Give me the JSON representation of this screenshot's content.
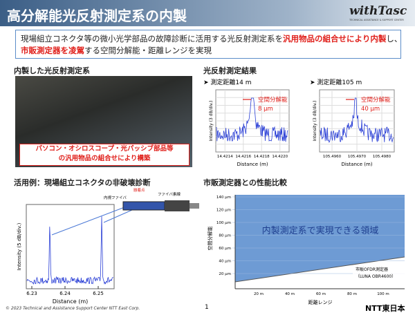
{
  "header": {
    "title": "高分解能光反射測定系の内製",
    "logo": "withTasc",
    "logo_sub": "TECHNICAL ASSISTANCE & SUPPORT CENTER"
  },
  "intro": {
    "line1": [
      "現場組立コネクタ等の微小光学部品の故障診断に活用する光反射測定系を",
      "汎用物品の組合せにより内製",
      "し、"
    ],
    "line2": [
      "市販測定器を凌駕",
      "する空間分解能・距離レンジを実現"
    ]
  },
  "system": {
    "heading": "内製した光反射測定系",
    "caption": [
      "パソコン・オシロスコープ・光パッシブ部品等",
      "の汎用物品の組合せにより構築"
    ]
  },
  "results": {
    "heading": "光反射測定結果",
    "plots": [
      {
        "label": "➤ 測定距離14 m",
        "annotation": [
          "空間分解能",
          "8 µm"
        ],
        "ylabel": "Intensity (3 dB/div.)",
        "xlabel": "Distance (m)",
        "xticks": [
          "14.4214",
          "14.4216",
          "14.4218",
          "14.4220"
        ]
      },
      {
        "label": "➤ 測定距離105 m",
        "annotation": [
          "空間分解能",
          "40 µm"
        ],
        "ylabel": "Intensity (3 dB/div.)",
        "xlabel": "Distance (m)",
        "xticks": [
          "105.4960",
          "105.4970",
          "105.4980"
        ]
      }
    ]
  },
  "usecase": {
    "heading": "活用例：現場組立コネクタの非破壊診断",
    "ylabel": "Intensity (5 dB/div.)",
    "xlabel": "Distance (m)",
    "xticks": [
      "6.23",
      "6.24",
      "6.25"
    ],
    "diagram": [
      "融着点",
      "内視ファイバ",
      "ファイバ素線"
    ]
  },
  "comparison": {
    "heading": "市販測定器との性能比較",
    "region": "内製測定系で実現できる領域",
    "ylabel": "空間分解能",
    "xlabel": "距離レンジ",
    "yticks": [
      "20 µm",
      "40 µm",
      "60 µm",
      "80 µm",
      "100 µm",
      "120 µm",
      "140 µm"
    ],
    "xticks": [
      "20 m",
      "40 m",
      "60 m",
      "80 m",
      "100 m"
    ],
    "commercial": [
      "市販OFDR測定器",
      "（LUNA OBR4600）"
    ]
  },
  "footer": {
    "copyright": "© 2023  Technical and Assistance Support Center NTT East Corp.",
    "page": "1",
    "brand": "NTT東日本"
  }
}
